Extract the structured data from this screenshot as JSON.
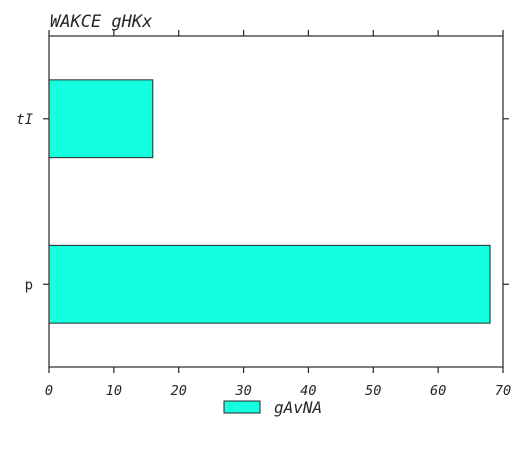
{
  "chart_data": {
    "type": "bar",
    "orientation": "horizontal",
    "title": "WAKCE gHKx",
    "xlabel": "",
    "ylabel": "",
    "categories": [
      "tI",
      "p"
    ],
    "series": [
      {
        "name": "gAvNA",
        "values": [
          16,
          68
        ],
        "color": "#14ffe0"
      }
    ],
    "xlim": [
      0,
      70
    ],
    "x_ticks": [
      0,
      10,
      20,
      30,
      40,
      50,
      60,
      70
    ],
    "grid": false,
    "legend_position": "bottom-center"
  }
}
